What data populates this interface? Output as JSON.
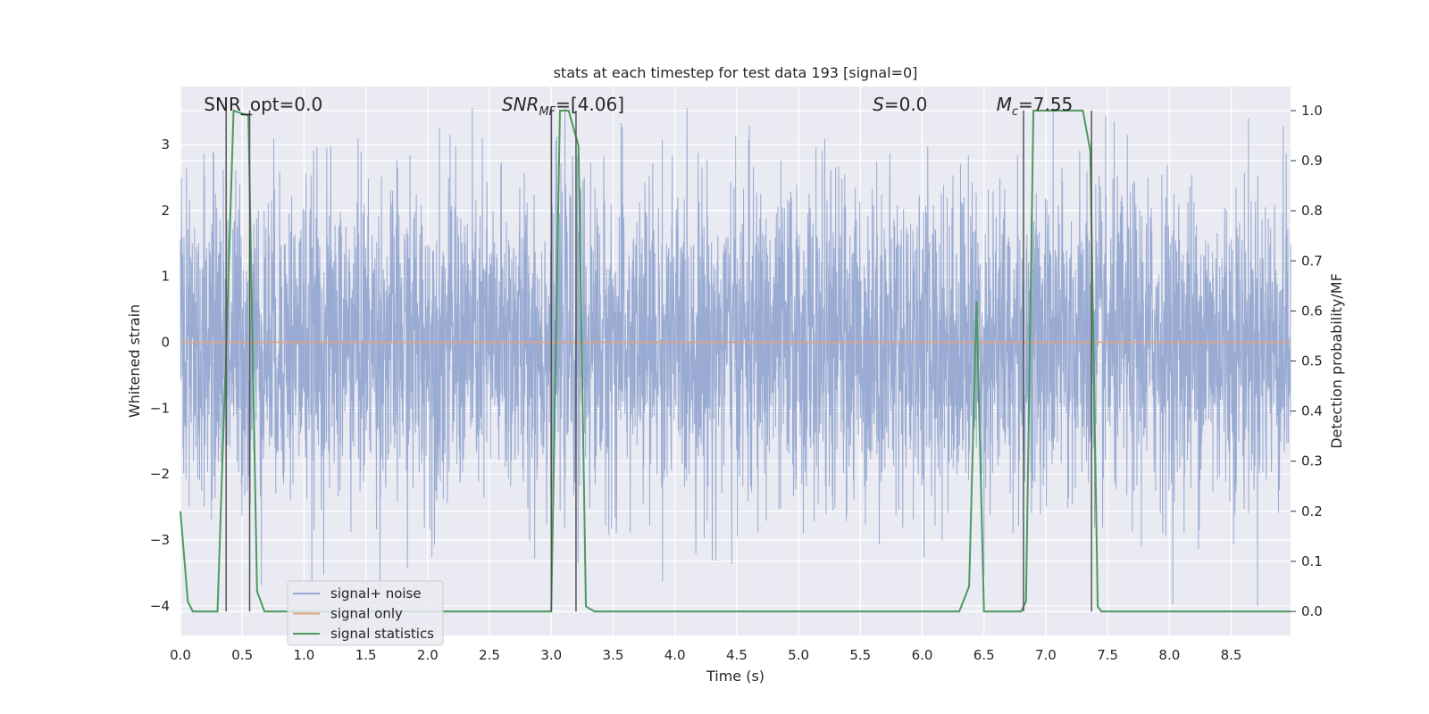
{
  "chart_data": {
    "type": "line",
    "title": "stats at each timestep for test data 193 [signal=0]",
    "xlabel": "Time (s)",
    "ylabel": "Whitened strain",
    "y2label": "Detection probability/MF",
    "xlim": [
      0.0,
      8.98
    ],
    "ylim": [
      -4.45,
      3.88
    ],
    "y2lim": [
      -0.048,
      1.048
    ],
    "x_ticks": [
      "0.0",
      "0.5",
      "1.0",
      "1.5",
      "2.0",
      "2.5",
      "3.0",
      "3.5",
      "4.0",
      "4.5",
      "5.0",
      "5.5",
      "6.0",
      "6.5",
      "7.0",
      "7.5",
      "8.0",
      "8.5"
    ],
    "y_ticks": [
      "3",
      "2",
      "1",
      "0",
      "−1",
      "−2",
      "−3",
      "−4"
    ],
    "y2_ticks": [
      "1.0",
      "0.9",
      "0.8",
      "0.7",
      "0.6",
      "0.5",
      "0.4",
      "0.3",
      "0.2",
      "0.1",
      "0.0"
    ],
    "grid": true,
    "legend_position": "lower-left",
    "annotations": {
      "snr_opt": "SNR_opt=0.0",
      "snr_mf_main": "SNR",
      "snr_mf_sub": "MF",
      "snr_mf_rest": "=[4.06]",
      "s_main": "S",
      "s_rest": "=0.0",
      "mc_main": "M",
      "mc_sub": "c",
      "mc_rest": "=7.55"
    },
    "series": [
      {
        "name": "signal+ noise",
        "axis": "left",
        "color": "#95a8d0",
        "kind": "noise",
        "x_range": [
          0.0,
          8.98
        ],
        "y_range": [
          -4.0,
          3.55
        ]
      },
      {
        "name": "signal only",
        "axis": "left",
        "color": "#e3a17f",
        "x": [
          0.0,
          8.98
        ],
        "y": [
          0.0,
          0.0
        ]
      },
      {
        "name": "signal statistics",
        "axis": "right",
        "color": "#4c9a5e",
        "x": [
          0.0,
          0.06,
          0.1,
          0.3,
          0.38,
          0.43,
          0.55,
          0.62,
          0.68,
          3.0,
          3.07,
          3.14,
          3.22,
          3.28,
          3.35,
          6.3,
          6.38,
          6.44,
          6.5,
          6.8,
          6.84,
          6.9,
          7.3,
          7.36,
          7.42,
          7.45,
          8.98
        ],
        "y": [
          0.2,
          0.02,
          0.0,
          0.0,
          0.6,
          1.0,
          0.99,
          0.04,
          0.0,
          0.0,
          1.0,
          1.0,
          0.93,
          0.01,
          0.0,
          0.0,
          0.05,
          0.62,
          0.0,
          0.0,
          0.02,
          1.0,
          1.0,
          0.92,
          0.01,
          0.0,
          0.0
        ]
      }
    ],
    "vlines_x": [
      0.37,
      0.56,
      3.0,
      3.2,
      6.82,
      7.37
    ]
  }
}
